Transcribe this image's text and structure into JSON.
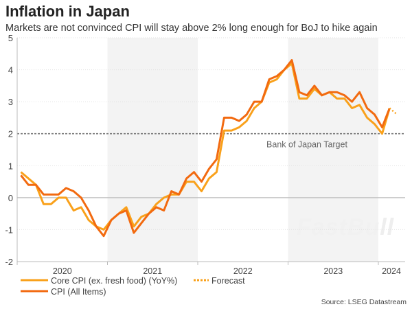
{
  "title": "Inflation in Japan",
  "subtitle": "Markets are not convinced CPI will stay above 2% long enough for BoJ to hike again",
  "source": "Source: LSEG Datastream",
  "watermark": "FastBull",
  "chart_data": {
    "type": "line",
    "title": "Inflation in Japan",
    "xlabel": "",
    "ylabel": "",
    "ylim": [
      -2,
      5
    ],
    "yticks": [
      "-2",
      "-1",
      "0",
      "1",
      "2",
      "3",
      "4",
      "5"
    ],
    "xticks": [
      "2020",
      "2021",
      "2022",
      "2023",
      "2024"
    ],
    "x_start": "2020-01",
    "x_frequency": "monthly",
    "grid": true,
    "shaded_years": [
      "2021",
      "2023"
    ],
    "legend_placement": "bottom",
    "annotations": [
      {
        "text": "Bank of Japan Target",
        "y": 2
      }
    ],
    "series": [
      {
        "name": "Core CPI (ex. fresh food) (YoY%)",
        "color": "#F9A11B",
        "values": [
          0.8,
          0.6,
          0.4,
          -0.2,
          -0.2,
          0.0,
          0.0,
          -0.4,
          -0.3,
          -0.7,
          -0.9,
          -1.0,
          -0.7,
          -0.5,
          -0.3,
          -0.9,
          -0.6,
          -0.5,
          -0.2,
          0.0,
          0.1,
          0.1,
          0.5,
          0.5,
          0.2,
          0.6,
          0.8,
          2.1,
          2.1,
          2.2,
          2.4,
          2.8,
          3.0,
          3.6,
          3.7,
          4.0,
          4.2,
          3.1,
          3.1,
          3.4,
          3.2,
          3.3,
          3.1,
          3.1,
          2.8,
          2.9,
          2.5,
          2.3,
          2.0,
          2.8
        ]
      },
      {
        "name": "CPI (All Items)",
        "color": "#F26A10",
        "values": [
          0.7,
          0.4,
          0.4,
          0.1,
          0.1,
          0.1,
          0.3,
          0.2,
          0.0,
          -0.4,
          -0.9,
          -1.2,
          -0.7,
          -0.5,
          -0.4,
          -1.1,
          -0.8,
          -0.5,
          -0.3,
          -0.4,
          0.2,
          0.1,
          0.6,
          0.8,
          0.5,
          0.9,
          1.2,
          2.5,
          2.5,
          2.4,
          2.6,
          3.0,
          3.0,
          3.7,
          3.8,
          4.0,
          4.3,
          3.3,
          3.2,
          3.5,
          3.2,
          3.3,
          3.3,
          3.2,
          3.0,
          3.3,
          2.8,
          2.6,
          2.2,
          2.8
        ]
      },
      {
        "name": "Forecast",
        "color": "#F9A11B",
        "dashed": true,
        "start": "2024-02",
        "values": [
          2.8,
          2.6
        ]
      }
    ]
  }
}
